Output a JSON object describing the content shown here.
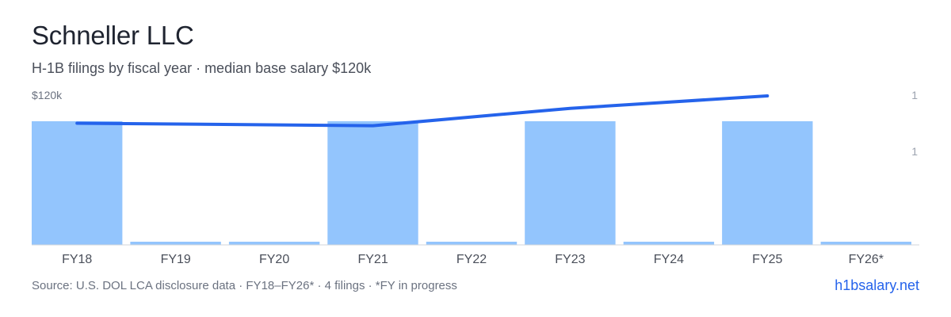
{
  "title": "Schneller LLC",
  "subtitle": "H-1B filings by fiscal year · median base salary $120k",
  "footer": {
    "source": "Source: U.S. DOL LCA disclosure data · FY18–FY26* · 4 filings · *FY in progress",
    "brand": "h1bsalary.net"
  },
  "colors": {
    "bar": "#93c5fd",
    "line": "#2563eb",
    "axis_text": "#6b7280",
    "baseline": "#d1d5db"
  },
  "chart_data": {
    "type": "bar",
    "categories": [
      "FY18",
      "FY19",
      "FY20",
      "FY21",
      "FY22",
      "FY23",
      "FY24",
      "FY25",
      "FY26*"
    ],
    "series": [
      {
        "type": "bar",
        "axis": "right",
        "values": [
          1,
          0,
          0,
          1,
          0,
          1,
          0,
          1,
          0
        ]
      },
      {
        "type": "line",
        "axis": "left",
        "values": [
          98000,
          null,
          null,
          96000,
          null,
          110000,
          null,
          120000,
          null
        ]
      }
    ],
    "left_axis": {
      "label": "$120k",
      "range": [
        0,
        120000
      ]
    },
    "right_axis": {
      "tick_labels": [
        "1",
        "1"
      ]
    },
    "grid": false,
    "legend": "none"
  }
}
